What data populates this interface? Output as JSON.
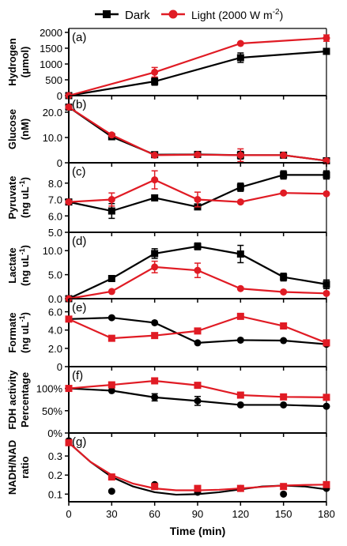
{
  "legend": {
    "items": [
      {
        "label": "Dark",
        "color": "#000000",
        "marker": "square"
      },
      {
        "label": "Light (2000 W m",
        "superscript": "-2",
        "suffix": ")",
        "color": "#e01b24",
        "marker": "circle"
      }
    ]
  },
  "colors": {
    "dark": "#000000",
    "light": "#e01b24"
  },
  "chart_data": [
    {
      "type": "line",
      "panel": "(a)",
      "ylabel": [
        "Hydrogen",
        "(μmol)"
      ],
      "yticks": [
        {
          "v": 0,
          "t": "0"
        },
        {
          "v": 500,
          "t": "500"
        },
        {
          "v": 1000,
          "t": "1000"
        },
        {
          "v": 1500,
          "t": "1500"
        },
        {
          "v": 2000,
          "t": "2000"
        }
      ],
      "ylim": [
        0,
        2000
      ],
      "series": [
        {
          "name": "Dark",
          "marker": "square",
          "x": [
            0,
            60,
            120,
            180
          ],
          "values": [
            0,
            450,
            1200,
            1400
          ],
          "err": [
            0,
            120,
            150,
            0
          ]
        },
        {
          "name": "Light (2000 W m-2)",
          "marker": "circle",
          "x": [
            0,
            60,
            120,
            180
          ],
          "values": [
            0,
            740,
            1650,
            1820
          ],
          "err": [
            0,
            150,
            0,
            100
          ]
        }
      ]
    },
    {
      "type": "line",
      "panel": "(b)",
      "ylabel": [
        "Glucose",
        "(nM)"
      ],
      "yticks": [
        {
          "v": 0,
          "t": "0"
        },
        {
          "v": 10,
          "t": "10.0"
        },
        {
          "v": 20,
          "t": "20.0"
        }
      ],
      "ylim": [
        0,
        25
      ],
      "series": [
        {
          "name": "Dark",
          "marker": "square",
          "x": [
            0,
            30,
            60,
            90,
            120,
            150,
            180
          ],
          "values": [
            22,
            10.3,
            3.2,
            3.3,
            3.0,
            3.0,
            0.8
          ],
          "err": [
            0,
            0,
            0,
            0,
            1.5,
            0,
            0
          ]
        },
        {
          "name": "Light (2000 W m-2)",
          "marker": "circle",
          "x": [
            0,
            30,
            60,
            90,
            120,
            150,
            180
          ],
          "values": [
            22,
            11,
            3.0,
            3.2,
            3.0,
            3.0,
            0.8
          ],
          "err": [
            0,
            0,
            0,
            0,
            2.5,
            0,
            0
          ]
        }
      ]
    },
    {
      "type": "line",
      "panel": "(c)",
      "ylabel": [
        "Pyruvate",
        "(ng uL",
        "-1",
        ")"
      ],
      "yticks": [
        {
          "v": 5,
          "t": "5.0"
        },
        {
          "v": 6,
          "t": "6.0"
        },
        {
          "v": 7,
          "t": "7.0"
        },
        {
          "v": 8,
          "t": "8.0"
        }
      ],
      "ylim": [
        5,
        9
      ],
      "series": [
        {
          "name": "Dark",
          "marker": "square",
          "x": [
            0,
            30,
            60,
            90,
            120,
            150,
            180
          ],
          "values": [
            6.85,
            6.3,
            7.1,
            6.55,
            7.75,
            8.5,
            8.5
          ],
          "err": [
            0,
            0.45,
            0,
            0,
            0.25,
            0.25,
            0.25
          ]
        },
        {
          "name": "Light (2000 W m-2)",
          "marker": "circle",
          "x": [
            0,
            30,
            60,
            90,
            120,
            150,
            180
          ],
          "values": [
            6.85,
            7.0,
            8.2,
            7.0,
            6.85,
            7.4,
            7.35
          ],
          "err": [
            0,
            0.4,
            0.55,
            0.45,
            0,
            0,
            0
          ]
        }
      ]
    },
    {
      "type": "line",
      "panel": "(d)",
      "ylabel": [
        "Lactate",
        "(ng uL",
        "-1",
        ")"
      ],
      "yticks": [
        {
          "v": 0,
          "t": "0.0"
        },
        {
          "v": 5,
          "t": "5.0"
        },
        {
          "v": 10,
          "t": "10.0"
        }
      ],
      "ylim": [
        0,
        13
      ],
      "series": [
        {
          "name": "Dark",
          "marker": "square",
          "x": [
            0,
            30,
            60,
            90,
            120,
            150,
            180
          ],
          "values": [
            0,
            4.2,
            9.4,
            10.9,
            9.3,
            4.5,
            3.0
          ],
          "err": [
            0,
            0.6,
            1.0,
            0.7,
            1.8,
            0.8,
            0.9
          ]
        },
        {
          "name": "Light (2000 W m-2)",
          "marker": "circle",
          "x": [
            0,
            30,
            60,
            90,
            120,
            150,
            180
          ],
          "values": [
            0,
            1.5,
            6.6,
            5.9,
            2.1,
            1.4,
            1.1
          ],
          "err": [
            0,
            0,
            1.2,
            1.5,
            0,
            0,
            0
          ]
        }
      ]
    },
    {
      "type": "line",
      "panel": "(e)",
      "ylabel": [
        "Formate",
        "(ng uL",
        "-1",
        ")"
      ],
      "yticks": [
        {
          "v": 0,
          "t": "0"
        },
        {
          "v": 2,
          "t": "2.0"
        },
        {
          "v": 4,
          "t": "4.0"
        },
        {
          "v": 6,
          "t": "6.0"
        }
      ],
      "ylim": [
        0,
        7
      ],
      "series": [
        {
          "name": "Dark",
          "marker": "circle",
          "x": [
            0,
            30,
            60,
            90,
            120,
            150,
            180
          ],
          "values": [
            5.2,
            5.35,
            4.8,
            2.6,
            2.9,
            2.85,
            2.45
          ],
          "err": [
            0,
            0,
            0,
            0,
            0,
            0,
            0
          ]
        },
        {
          "name": "Light (2000 W m-2)",
          "marker": "square",
          "x": [
            0,
            30,
            60,
            90,
            120,
            150,
            180
          ],
          "values": [
            5.2,
            3.1,
            3.4,
            3.9,
            5.5,
            4.45,
            2.6
          ],
          "err": [
            0,
            0,
            0,
            0,
            0,
            0,
            0
          ]
        }
      ]
    },
    {
      "type": "line",
      "panel": "(f)",
      "ylabel": [
        "FDH activity",
        "Percentage"
      ],
      "yticks": [
        {
          "v": 0,
          "t": "0%"
        },
        {
          "v": 50,
          "t": "50%"
        },
        {
          "v": 100,
          "t": "100%"
        }
      ],
      "ylim": [
        0,
        140
      ],
      "series": [
        {
          "name": "Dark",
          "marker": "circle",
          "x": [
            0,
            30,
            60,
            90,
            120,
            150,
            180
          ],
          "values": [
            100,
            95,
            80,
            72,
            63,
            63,
            60
          ],
          "err": [
            0,
            0,
            8,
            10,
            0,
            0,
            0
          ]
        },
        {
          "name": "Light (2000 W m-2)",
          "marker": "square",
          "x": [
            0,
            30,
            60,
            90,
            120,
            150,
            180
          ],
          "values": [
            100,
            108,
            117,
            107,
            85,
            81,
            80
          ],
          "err": [
            0,
            0,
            0,
            0,
            0,
            0,
            0
          ]
        }
      ]
    },
    {
      "type": "scatter",
      "panel": "(g)",
      "ylabel": [
        "NADH/NAD",
        "ratio"
      ],
      "yticks": [
        {
          "v": 0.1,
          "t": "0.1"
        },
        {
          "v": 0.2,
          "t": "0.2"
        },
        {
          "v": 0.3,
          "t": "0.3"
        }
      ],
      "ylim": [
        0.06,
        0.4
      ],
      "xlabel": "Time (min)",
      "xticks": [
        {
          "v": 0,
          "t": "0"
        },
        {
          "v": 30,
          "t": "30"
        },
        {
          "v": 60,
          "t": "60"
        },
        {
          "v": 90,
          "t": "90"
        },
        {
          "v": 120,
          "t": "120"
        },
        {
          "v": 150,
          "t": "150"
        },
        {
          "v": 180,
          "t": "180"
        }
      ],
      "series": [
        {
          "name": "Dark",
          "marker": "circle",
          "x": [
            0,
            30,
            60,
            90,
            120,
            150,
            180
          ],
          "values": [
            0.38,
            0.115,
            0.15,
            0.11,
            0.13,
            0.1,
            0.13
          ],
          "err": [
            0,
            0,
            0,
            0,
            0,
            0,
            0
          ],
          "fit": [
            [
              0,
              0.37
            ],
            [
              15,
              0.27
            ],
            [
              30,
              0.19
            ],
            [
              45,
              0.14
            ],
            [
              60,
              0.11
            ],
            [
              75,
              0.097
            ],
            [
              90,
              0.1
            ],
            [
              105,
              0.11
            ],
            [
              120,
              0.125
            ],
            [
              135,
              0.14
            ],
            [
              150,
              0.145
            ],
            [
              165,
              0.14
            ],
            [
              180,
              0.125
            ]
          ]
        },
        {
          "name": "Light (2000 W m-2)",
          "marker": "square",
          "x": [
            0,
            30,
            60,
            90,
            120,
            150,
            180
          ],
          "values": [
            0.37,
            0.19,
            0.14,
            0.13,
            0.13,
            0.14,
            0.15
          ],
          "err": [
            0,
            0,
            0,
            0,
            0,
            0,
            0
          ],
          "fit": [
            [
              0,
              0.37
            ],
            [
              15,
              0.27
            ],
            [
              30,
              0.2
            ],
            [
              45,
              0.155
            ],
            [
              60,
              0.13
            ],
            [
              75,
              0.12
            ],
            [
              90,
              0.12
            ],
            [
              105,
              0.123
            ],
            [
              120,
              0.13
            ],
            [
              135,
              0.138
            ],
            [
              150,
              0.145
            ],
            [
              165,
              0.148
            ],
            [
              180,
              0.15
            ]
          ]
        }
      ]
    }
  ]
}
